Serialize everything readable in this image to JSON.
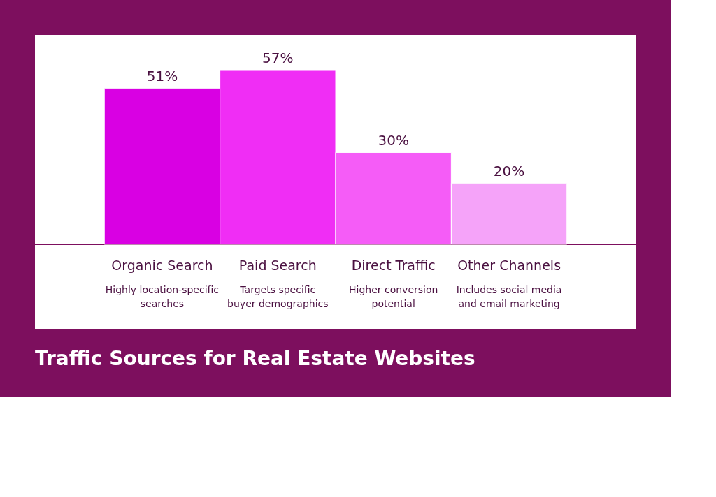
{
  "chart_data": {
    "type": "bar",
    "title": "Traffic Sources for Real Estate Websites",
    "categories": [
      "Organic Search",
      "Paid Search",
      "Direct Traffic",
      "Other Channels"
    ],
    "values": [
      51,
      57,
      30,
      20
    ],
    "colors": [
      "#d900e3",
      "#f02df5",
      "#f55cf7",
      "#f5a3f9"
    ],
    "value_labels": [
      "51%",
      "57%",
      "30%",
      "20%"
    ],
    "annotations": [
      "Highly location-specific searches",
      "Targets specific buyer demographics",
      "Higher conversion potential",
      "Includes social media and email marketing"
    ]
  }
}
